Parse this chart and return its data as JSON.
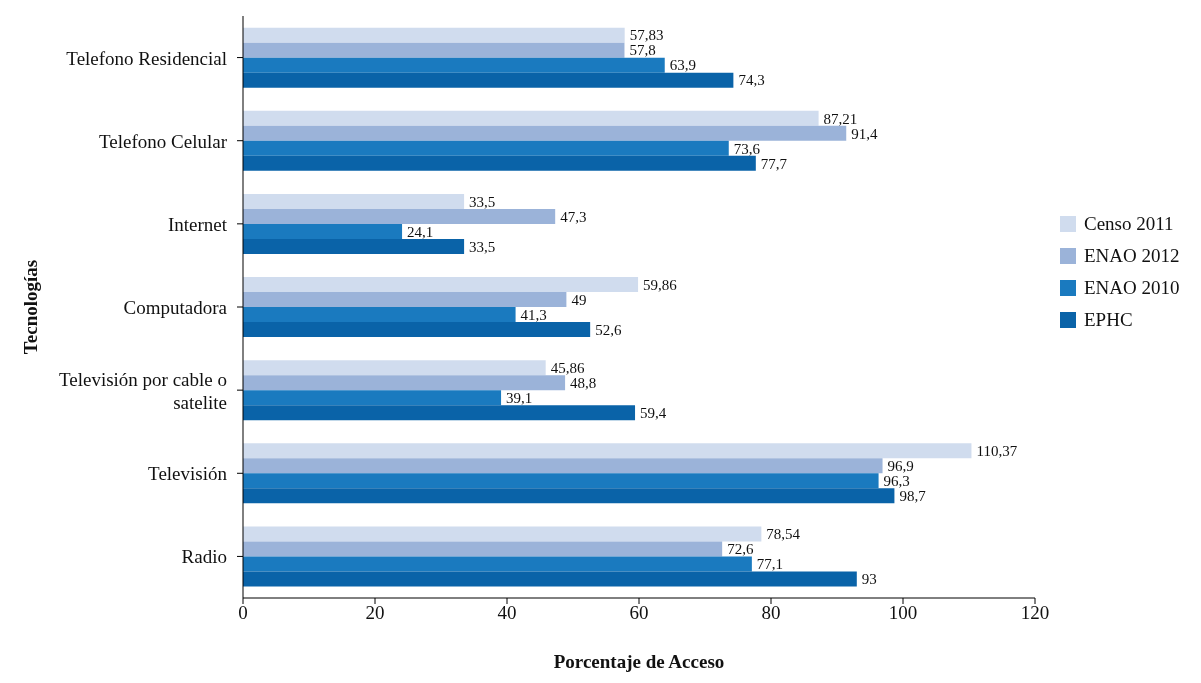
{
  "chart_data": {
    "type": "bar",
    "orientation": "horizontal",
    "xlabel": "Porcentaje de Acceso",
    "ylabel": "Tecnologías",
    "categories": [
      "Telefono Residencial",
      "Telefono Celular",
      "Internet",
      "Computadora",
      "Televisión por cable o satelite",
      "Televisión",
      "Radio"
    ],
    "series": [
      {
        "name": "Censo 2011",
        "color": "#d0dcee",
        "values": [
          57.83,
          87.21,
          33.5,
          59.86,
          45.86,
          110.37,
          78.54
        ],
        "value_labels": [
          "57,83",
          "87,21",
          "33,5",
          "59,86",
          "45,86",
          "110,37",
          "78,54"
        ]
      },
      {
        "name": "ENAO 2012",
        "color": "#9bb3d9",
        "values": [
          57.8,
          91.4,
          47.3,
          49,
          48.8,
          96.9,
          72.6
        ],
        "value_labels": [
          "57,8",
          "91,4",
          "47,3",
          "49",
          "48,8",
          "96,9",
          "72,6"
        ]
      },
      {
        "name": "ENAO 2010",
        "color": "#1a7abf",
        "values": [
          63.9,
          73.6,
          24.1,
          41.3,
          39.1,
          96.3,
          77.1
        ],
        "value_labels": [
          "63,9",
          "73,6",
          "24,1",
          "41,3",
          "39,1",
          "96,3",
          "77,1"
        ]
      },
      {
        "name": "EPHC",
        "color": "#0a63a8",
        "values": [
          74.3,
          77.7,
          33.5,
          52.6,
          59.4,
          98.7,
          93
        ],
        "value_labels": [
          "74,3",
          "77,7",
          "33,5",
          "52,6",
          "59,4",
          "98,7",
          "93"
        ]
      }
    ],
    "xlim": [
      0,
      120
    ],
    "xticks": [
      0,
      20,
      40,
      60,
      80,
      100,
      120
    ],
    "grid": false,
    "legend": "right"
  }
}
